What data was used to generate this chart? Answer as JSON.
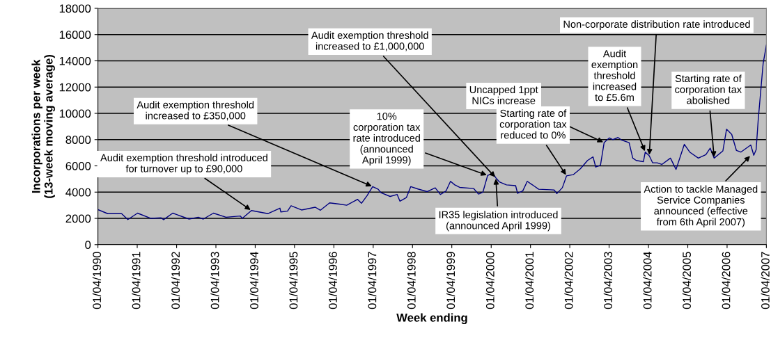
{
  "chart_data": {
    "type": "line",
    "xlabel": "Week ending",
    "ylabel": "Incorporations per week\n(13-week moving average)",
    "x": [
      "1990-04-01",
      "1990-07-01",
      "1990-11-07",
      "1991-01-04",
      "1991-04-04",
      "1991-08-07",
      "1991-11-10",
      "1991-12-02",
      "1992-02-25",
      "1992-07-26",
      "1992-10-19",
      "1992-12-05",
      "1993-03-09",
      "1993-07-04",
      "1993-11-14",
      "1993-12-02",
      "1994-02-25",
      "1994-07-29",
      "1994-11-17",
      "1994-11-25",
      "1995-01-26",
      "1995-02-28",
      "1995-06-05",
      "1995-10-11",
      "1995-11-28",
      "1996-02-21",
      "1996-05-21",
      "1996-07-29",
      "1996-11-07",
      "1996-12-13",
      "1997-02-03",
      "1997-03-27",
      "1997-05-17",
      "1997-06-13",
      "1997-09-05",
      "1997-11-10",
      "1997-12-05",
      "1998-02-03",
      "1998-03-16",
      "1998-05-21",
      "1998-08-14",
      "1998-10-29",
      "1998-12-16",
      "1999-02-07",
      "1999-03-20",
      "1999-04-29",
      "1999-06-13",
      "1999-10-22",
      "1999-12-05",
      "2000-01-15",
      "2000-02-28",
      "2000-04-15",
      "2000-05-14",
      "2000-06-16",
      "2000-08-21",
      "2000-11-14",
      "2000-12-02",
      "2001-01-19",
      "2001-03-02",
      "2001-05-07",
      "2001-06-16",
      "2001-10-04",
      "2001-11-07",
      "2001-12-02",
      "2002-01-22",
      "2002-03-02",
      "2002-05-03",
      "2002-07-08",
      "2002-09-13",
      "2002-11-03",
      "2002-11-28",
      "2003-01-11",
      "2003-02-14",
      "2003-04-04",
      "2003-05-07",
      "2003-06-23",
      "2003-07-29",
      "2003-10-04",
      "2003-11-07",
      "2003-12-09",
      "2004-02-14",
      "2004-03-02",
      "2004-04-08",
      "2004-05-10",
      "2004-06-20",
      "2004-08-03",
      "2004-10-22",
      "2004-12-13",
      "2005-02-28",
      "2005-04-19",
      "2005-07-08",
      "2005-09-16",
      "2005-10-26",
      "2005-12-02",
      "2006-02-21",
      "2006-03-27",
      "2006-05-14",
      "2006-06-27",
      "2006-08-07",
      "2006-11-07",
      "2006-12-05",
      "2006-12-27",
      "2007-01-15",
      "2007-03-02",
      "2007-04-01"
    ],
    "series": [
      {
        "color": "#000080",
        "values": [
          2670,
          2360,
          2360,
          1910,
          2400,
          2000,
          2040,
          1900,
          2400,
          1950,
          2090,
          1950,
          2400,
          2090,
          2180,
          2000,
          2600,
          2360,
          2780,
          2490,
          2550,
          2960,
          2640,
          2850,
          2620,
          3180,
          3090,
          3000,
          3450,
          3150,
          3730,
          4420,
          4220,
          3950,
          3670,
          3820,
          3310,
          3580,
          4420,
          4240,
          4040,
          4330,
          3820,
          4090,
          4820,
          4550,
          4360,
          4270,
          3850,
          4000,
          5270,
          5450,
          5090,
          4780,
          4550,
          4490,
          3910,
          4090,
          4820,
          4450,
          4220,
          4180,
          4160,
          3890,
          4340,
          5240,
          5330,
          5780,
          6410,
          6680,
          5910,
          6050,
          7770,
          8130,
          8000,
          8160,
          7950,
          7770,
          6590,
          6410,
          6320,
          7050,
          6770,
          6230,
          6230,
          6110,
          6590,
          5730,
          7640,
          7050,
          6590,
          6860,
          7350,
          6590,
          7140,
          8790,
          8400,
          7170,
          7050,
          7590,
          6810,
          7230,
          9480,
          13800,
          15200
        ]
      }
    ],
    "xlim": [
      "1990-04-01",
      "2007-04-01"
    ],
    "xticks": [
      {
        "value": "1990-04-01",
        "label": "01/04/1990"
      },
      {
        "value": "1991-04-01",
        "label": "01/04/1991"
      },
      {
        "value": "1992-04-01",
        "label": "01/04/1992"
      },
      {
        "value": "1993-04-01",
        "label": "01/04/1993"
      },
      {
        "value": "1994-04-01",
        "label": "01/04/1994"
      },
      {
        "value": "1995-04-01",
        "label": "01/04/1995"
      },
      {
        "value": "1996-04-01",
        "label": "01/04/1996"
      },
      {
        "value": "1997-04-01",
        "label": "01/04/1997"
      },
      {
        "value": "1998-04-01",
        "label": "01/04/1998"
      },
      {
        "value": "1999-04-01",
        "label": "01/04/1999"
      },
      {
        "value": "2000-04-01",
        "label": "01/04/2000"
      },
      {
        "value": "2001-04-01",
        "label": "01/04/2001"
      },
      {
        "value": "2002-04-01",
        "label": "01/04/2002"
      },
      {
        "value": "2003-04-01",
        "label": "01/04/2003"
      },
      {
        "value": "2004-04-01",
        "label": "01/04/2004"
      },
      {
        "value": "2005-04-01",
        "label": "01/04/2005"
      },
      {
        "value": "2006-04-01",
        "label": "01/04/2006"
      },
      {
        "value": "2007-04-01",
        "label": "01/04/2007"
      }
    ],
    "ylim": [
      0,
      18000
    ],
    "yticks": [
      0,
      2000,
      4000,
      6000,
      8000,
      10000,
      12000,
      14000,
      16000,
      18000
    ],
    "grid": "y",
    "annotations": [
      {
        "text": "Audit exemption threshold introduced\nfor turnover up to £90,000",
        "x": "1994-02-25",
        "y": 2600
      },
      {
        "text": "Audit exemption threshold\nincreased to £350,000",
        "x": "1997-03-27",
        "y": 4420
      },
      {
        "text": "10%\ncorporation tax\nrate introduced\n(announced\nApril 1999)",
        "x": "2000-02-28",
        "y": 5270
      },
      {
        "text": "Audit exemption threshold\nincreased to £1,000,000",
        "x": "2000-05-14",
        "y": 5090
      },
      {
        "text": "IR35 legislation introduced\n(announced April 1999)",
        "x": "2000-05-14",
        "y": 5090
      },
      {
        "text": "Starting rate of\ncorporation tax\nreduced to 0%",
        "x": "2002-03-02",
        "y": 5240
      },
      {
        "text": "Uncapped 1ppt\nNICs increase",
        "x": "2003-02-14",
        "y": 7770
      },
      {
        "text": "Audit\nexemption\nthreshold\nincreased\nto £5.6m",
        "x": "2004-03-02",
        "y": 7050
      },
      {
        "text": "Non-corporate distribution rate introduced",
        "x": "2004-04-08",
        "y": 6770
      },
      {
        "text": "Starting rate of\ncorporation tax\nabolished",
        "x": "2005-12-02",
        "y": 6590
      },
      {
        "text": "Action to tackle Managed\nService Companies\nannounced (effective\nfrom 6th April 2007)",
        "x": "2006-11-07",
        "y": 6810
      }
    ]
  }
}
